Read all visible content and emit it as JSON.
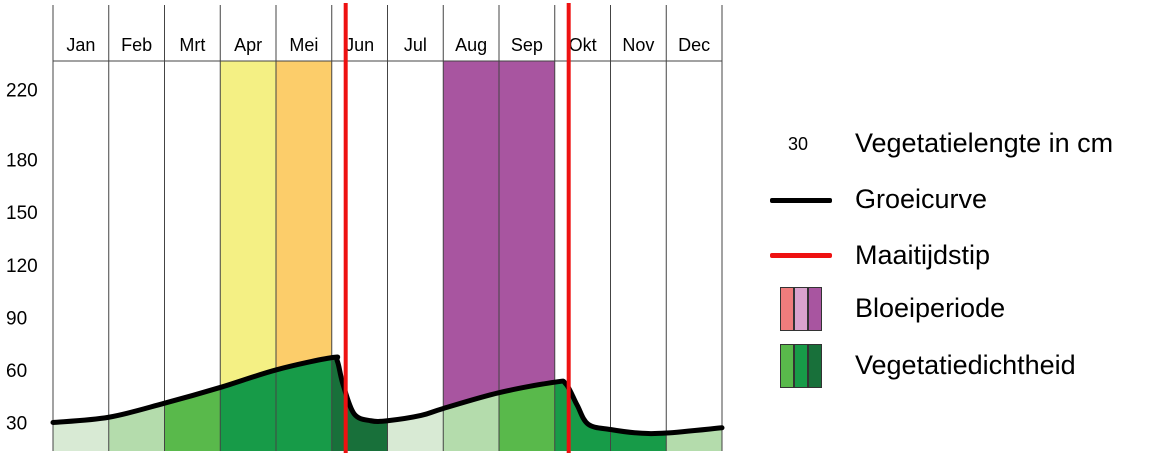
{
  "chart_data": {
    "type": "area",
    "categories": [
      "Jan",
      "Feb",
      "Mrt",
      "Apr",
      "Mei",
      "Jun",
      "Jul",
      "Aug",
      "Sep",
      "Okt",
      "Nov",
      "Dec"
    ],
    "y_ticks": [
      30,
      60,
      90,
      120,
      150,
      180,
      220
    ],
    "ylim": [
      15,
      236
    ],
    "growth_curve": {
      "x": [
        0,
        1,
        2,
        3,
        4,
        5,
        5.1,
        5.2,
        5.4,
        5.7,
        6,
        6.6,
        7,
        8,
        9,
        9.2,
        9.4,
        9.6,
        10,
        10.5,
        11,
        12
      ],
      "y": [
        30,
        33,
        41,
        50,
        60,
        67,
        65,
        52,
        35,
        31,
        31,
        34,
        38,
        47,
        53,
        52,
        40,
        29,
        26,
        24,
        24,
        27
      ]
    },
    "mowing_months": [
      5.25,
      9.25
    ],
    "bloom_periods": [
      {
        "start": 3,
        "end": 4,
        "color": "#f4f084"
      },
      {
        "start": 4,
        "end": 5,
        "color": "#fccd6a"
      },
      {
        "start": 7,
        "end": 9,
        "color": "#a855a0"
      }
    ],
    "vegetation_density_colors": [
      "#d8ead4",
      "#b4dcac",
      "#59b94b",
      "#179b48",
      "#18703a"
    ],
    "vegetation_density_levels": [
      0,
      1,
      2,
      3,
      3,
      4,
      0,
      1,
      2,
      3,
      3,
      1
    ],
    "legend": {
      "vegetation_length_value": "30",
      "vegetation_length_label": "Vegetatielengte in cm",
      "growth_curve_label": "Groeicurve",
      "mowing_label": "Maaitijdstip",
      "bloom_label": "Bloeiperiode",
      "density_label": "Vegetatiedichtheid"
    },
    "colors": {
      "curve": "#000000",
      "mowing": "#ee1111",
      "bloom_swatches": [
        "#f07c7c",
        "#d9a2cd",
        "#a855a0"
      ],
      "density_swatches": [
        "#59b94b",
        "#179b48",
        "#18703a"
      ]
    }
  }
}
